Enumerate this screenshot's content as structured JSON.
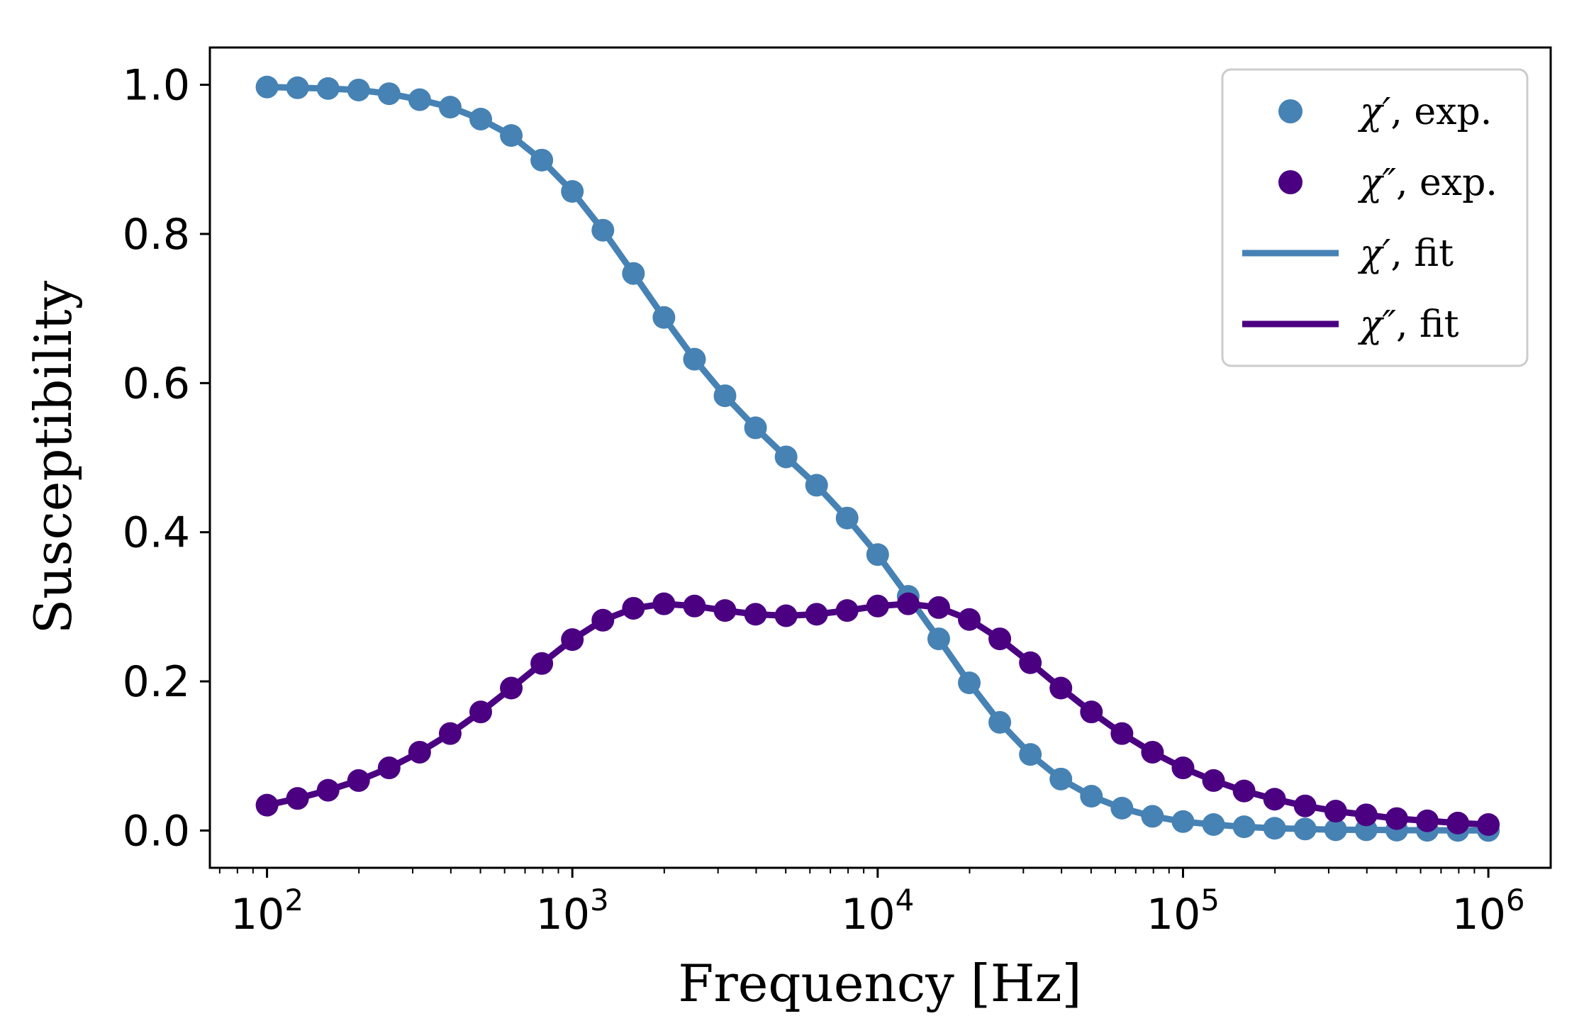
{
  "chart_data": {
    "type": "line",
    "title": "",
    "xlabel": "Frequency [Hz]",
    "ylabel": "Susceptibility",
    "xscale": "log",
    "xlim": [
      65,
      1600000
    ],
    "ylim": [
      -0.05,
      1.05
    ],
    "xticks": [
      {
        "value": 100,
        "base": "10",
        "exp": "2"
      },
      {
        "value": 1000,
        "base": "10",
        "exp": "3"
      },
      {
        "value": 10000,
        "base": "10",
        "exp": "4"
      },
      {
        "value": 100000,
        "base": "10",
        "exp": "5"
      },
      {
        "value": 1000000,
        "base": "10",
        "exp": "6"
      }
    ],
    "yticks": [
      {
        "value": 0.0,
        "label": "0.0"
      },
      {
        "value": 0.2,
        "label": "0.2"
      },
      {
        "value": 0.4,
        "label": "0.4"
      },
      {
        "value": 0.6,
        "label": "0.6"
      },
      {
        "value": 0.8,
        "label": "0.8"
      },
      {
        "value": 1.0,
        "label": "1.0"
      }
    ],
    "legend_position": "top-right",
    "x": [
      100,
      125.9,
      158.5,
      199.5,
      251.2,
      316.2,
      398.1,
      501.2,
      631.0,
      794.3,
      1000,
      1259,
      1585,
      1995,
      2512,
      3162,
      3981,
      5012,
      6310,
      7943,
      10000,
      12589,
      15849,
      19953,
      25119,
      31623,
      39811,
      50119,
      63096,
      79433,
      100000,
      125893,
      158489,
      199526,
      251189,
      316228,
      398107,
      501187,
      630957,
      794328,
      1000000
    ],
    "series": [
      {
        "name": "χ′, exp.",
        "legend_symbol": "χ′",
        "legend_suffix": ", exp.",
        "kind": "scatter",
        "color": "#4682b4",
        "values": [
          0.997,
          0.996,
          0.995,
          0.993,
          0.988,
          0.98,
          0.97,
          0.954,
          0.932,
          0.899,
          0.857,
          0.805,
          0.747,
          0.688,
          0.632,
          0.583,
          0.54,
          0.501,
          0.463,
          0.419,
          0.37,
          0.314,
          0.257,
          0.198,
          0.145,
          0.102,
          0.069,
          0.046,
          0.03,
          0.019,
          0.012,
          0.008,
          0.005,
          0.003,
          0.002,
          0.001,
          0.001,
          0.0005,
          0.0003,
          0.0002,
          0.0001
        ]
      },
      {
        "name": "χ″, exp.",
        "legend_symbol": "χ″",
        "legend_suffix": ", exp.",
        "kind": "scatter",
        "color": "#4b0082",
        "values": [
          0.034,
          0.043,
          0.054,
          0.067,
          0.084,
          0.105,
          0.13,
          0.159,
          0.191,
          0.224,
          0.256,
          0.282,
          0.298,
          0.304,
          0.301,
          0.295,
          0.29,
          0.288,
          0.29,
          0.295,
          0.301,
          0.304,
          0.299,
          0.283,
          0.257,
          0.225,
          0.191,
          0.159,
          0.13,
          0.105,
          0.084,
          0.067,
          0.053,
          0.042,
          0.033,
          0.026,
          0.021,
          0.016,
          0.013,
          0.01,
          0.008
        ]
      },
      {
        "name": "χ′, fit",
        "legend_symbol": "χ′",
        "legend_suffix": ", fit",
        "kind": "line",
        "color": "#4682b4",
        "values": [
          0.997,
          0.996,
          0.995,
          0.993,
          0.988,
          0.98,
          0.97,
          0.954,
          0.932,
          0.899,
          0.857,
          0.805,
          0.747,
          0.688,
          0.632,
          0.583,
          0.54,
          0.501,
          0.463,
          0.419,
          0.37,
          0.314,
          0.257,
          0.198,
          0.145,
          0.102,
          0.069,
          0.046,
          0.03,
          0.019,
          0.012,
          0.008,
          0.005,
          0.003,
          0.002,
          0.001,
          0.001,
          0.0005,
          0.0003,
          0.0002,
          0.0001
        ]
      },
      {
        "name": "χ″, fit",
        "legend_symbol": "χ″",
        "legend_suffix": ", fit",
        "kind": "line",
        "color": "#4b0082",
        "values": [
          0.034,
          0.043,
          0.054,
          0.067,
          0.084,
          0.105,
          0.13,
          0.159,
          0.191,
          0.224,
          0.256,
          0.282,
          0.298,
          0.304,
          0.301,
          0.295,
          0.29,
          0.288,
          0.29,
          0.295,
          0.301,
          0.304,
          0.299,
          0.283,
          0.257,
          0.225,
          0.191,
          0.159,
          0.13,
          0.105,
          0.084,
          0.067,
          0.053,
          0.042,
          0.033,
          0.026,
          0.021,
          0.016,
          0.013,
          0.01,
          0.008
        ]
      }
    ]
  }
}
